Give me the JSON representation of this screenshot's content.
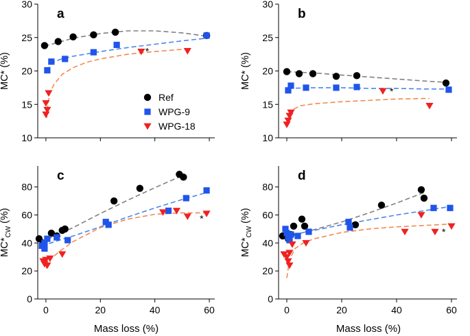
{
  "colors": {
    "Ref": "#000000",
    "WPG-9": "#1f55ea",
    "WPG-18": "#ee2222",
    "fit_Ref": "#808080",
    "fit_WPG-9": "#4a86e8",
    "fit_WPG-18": "#f08a50"
  },
  "xlabels": {
    "bottom_left": "Mass loss (%)",
    "bottom_right": "Mass loss (%)"
  },
  "chart_data": [
    {
      "panel": "a",
      "type": "scatter",
      "ylabel": "MC* (%)",
      "ylabel_sub": "",
      "xlabel": "",
      "xlim": [
        -3,
        62
      ],
      "ylim": [
        10,
        30
      ],
      "xticks": [
        "0",
        "20",
        "40",
        "60"
      ],
      "xtick_values": [
        0,
        20,
        40,
        60
      ],
      "show_xticklabels": false,
      "yticks": [
        "10",
        "15",
        "20",
        "25",
        "30"
      ],
      "ytick_values": [
        10,
        15,
        20,
        25,
        30
      ],
      "legend": [
        "Ref",
        "WPG-9",
        "WPG-18"
      ],
      "annotation": {
        "text": "*",
        "x": 36.5,
        "y": 23.0
      },
      "series": [
        {
          "name": "Ref",
          "marker": "circle",
          "points": [
            [
              -0.5,
              23.8
            ],
            [
              4.5,
              24.4
            ],
            [
              10,
              25.1
            ],
            [
              17.5,
              25.4
            ],
            [
              25.5,
              25.8
            ],
            [
              59,
              25.3
            ]
          ],
          "fit": [
            [
              -0.5,
              23.7
            ],
            [
              10,
              24.9
            ],
            [
              20,
              25.6
            ],
            [
              30,
              26.0
            ],
            [
              40,
              26.0
            ],
            [
              50,
              25.7
            ],
            [
              59,
              25.2
            ]
          ]
        },
        {
          "name": "WPG-9",
          "marker": "square",
          "points": [
            [
              0.5,
              20.1
            ],
            [
              2,
              21.4
            ],
            [
              7,
              21.8
            ],
            [
              17.5,
              22.8
            ],
            [
              26,
              23.9
            ],
            [
              59,
              25.3
            ]
          ],
          "fit": [
            [
              0.5,
              20.0
            ],
            [
              2,
              21.1
            ],
            [
              5,
              21.7
            ],
            [
              10,
              22.2
            ],
            [
              20,
              22.9
            ],
            [
              30,
              23.5
            ],
            [
              40,
              24.0
            ],
            [
              50,
              24.5
            ],
            [
              59,
              24.9
            ]
          ]
        },
        {
          "name": "WPG-18",
          "marker": "triangle-down",
          "points": [
            [
              0,
              13.5
            ],
            [
              0,
              15.2
            ],
            [
              0.5,
              14.2
            ],
            [
              1,
              16.7
            ],
            [
              35,
              22.9
            ],
            [
              52,
              23.0
            ]
          ],
          "fit": [
            [
              0.3,
              13.0
            ],
            [
              0.7,
              15.0
            ],
            [
              1.5,
              16.8
            ],
            [
              3,
              18.0
            ],
            [
              6,
              19.5
            ],
            [
              10,
              20.5
            ],
            [
              15,
              21.3
            ],
            [
              20,
              21.8
            ],
            [
              30,
              22.5
            ],
            [
              40,
              22.9
            ],
            [
              52,
              23.3
            ]
          ]
        }
      ]
    },
    {
      "panel": "b",
      "type": "scatter",
      "ylabel": "MC* (%)",
      "ylabel_sub": "",
      "xlabel": "",
      "xlim": [
        -3,
        62
      ],
      "ylim": [
        10,
        30
      ],
      "xticks": [
        "0",
        "20",
        "40",
        "60"
      ],
      "xtick_values": [
        0,
        20,
        40,
        60
      ],
      "show_xticklabels": false,
      "yticks": [
        "10",
        "15",
        "20",
        "25",
        "30"
      ],
      "ytick_values": [
        10,
        15,
        20,
        25,
        30
      ],
      "legend": [],
      "annotation": {
        "text": "*",
        "x": 37.5,
        "y": 17.0
      },
      "series": [
        {
          "name": "Ref",
          "marker": "circle",
          "points": [
            [
              0,
              19.9
            ],
            [
              4.5,
              19.6
            ],
            [
              9.5,
              19.6
            ],
            [
              18,
              19.2
            ],
            [
              25.5,
              19.3
            ],
            [
              58,
              18.2
            ]
          ],
          "fit": [
            [
              0,
              19.9
            ],
            [
              10,
              19.7
            ],
            [
              20,
              19.4
            ],
            [
              30,
              19.1
            ],
            [
              40,
              18.8
            ],
            [
              50,
              18.5
            ],
            [
              58,
              18.3
            ]
          ]
        },
        {
          "name": "WPG-9",
          "marker": "square",
          "points": [
            [
              0.5,
              17.1
            ],
            [
              1.5,
              17.8
            ],
            [
              7,
              17.5
            ],
            [
              18,
              17.5
            ],
            [
              25.5,
              17.6
            ],
            [
              59,
              17.2
            ]
          ],
          "fit": [
            [
              0.5,
              17.4
            ],
            [
              10,
              17.5
            ],
            [
              20,
              17.5
            ],
            [
              30,
              17.4
            ],
            [
              40,
              17.4
            ],
            [
              50,
              17.3
            ],
            [
              59,
              17.3
            ]
          ]
        },
        {
          "name": "WPG-18",
          "marker": "triangle-down",
          "points": [
            [
              0,
              12.0
            ],
            [
              0.5,
              12.6
            ],
            [
              1,
              13.3
            ],
            [
              1.5,
              13.8
            ],
            [
              35,
              17.0
            ],
            [
              52,
              14.8
            ]
          ],
          "fit": [
            [
              0.3,
              12.3
            ],
            [
              1,
              13.5
            ],
            [
              2,
              14.2
            ],
            [
              5,
              14.8
            ],
            [
              10,
              15.1
            ],
            [
              20,
              15.4
            ],
            [
              30,
              15.6
            ],
            [
              40,
              15.8
            ],
            [
              52,
              15.9
            ]
          ]
        }
      ]
    },
    {
      "panel": "c",
      "type": "scatter",
      "ylabel": "MC*",
      "ylabel_sub": "CW",
      "ylabel_tail": " (%)",
      "xlabel": "Mass loss (%)",
      "xlim": [
        -3,
        62
      ],
      "ylim": [
        0,
        95
      ],
      "xticks": [
        "0",
        "20",
        "40",
        "60"
      ],
      "xtick_values": [
        0,
        20,
        40,
        60
      ],
      "show_xticklabels": true,
      "yticks": [
        "0",
        "20",
        "40",
        "60",
        "80"
      ],
      "ytick_values": [
        0,
        20,
        40,
        60,
        80
      ],
      "legend": [],
      "annotation": {
        "text": "*",
        "x": 56.5,
        "y": 57.5
      },
      "series": [
        {
          "name": "Ref",
          "marker": "circle",
          "points": [
            [
              -2.5,
              43
            ],
            [
              -1,
              40
            ],
            [
              2,
              47
            ],
            [
              4,
              45
            ],
            [
              6,
              49
            ],
            [
              7,
              50
            ],
            [
              25,
              70
            ],
            [
              34.5,
              79
            ],
            [
              49,
              89
            ],
            [
              50.5,
              87
            ]
          ],
          "fit": [
            [
              -2,
              40.5
            ],
            [
              5,
              46.5
            ],
            [
              10,
              51
            ],
            [
              20,
              61
            ],
            [
              30,
              70.5
            ],
            [
              40,
              79.5
            ],
            [
              50.5,
              88.5
            ]
          ]
        },
        {
          "name": "WPG-9",
          "marker": "square",
          "points": [
            [
              -1.5,
              38
            ],
            [
              -0.5,
              36
            ],
            [
              -0.5,
              40
            ],
            [
              0.5,
              43
            ],
            [
              4,
              44
            ],
            [
              8,
              42
            ],
            [
              22,
              55
            ],
            [
              23,
              53
            ],
            [
              45,
              63
            ],
            [
              51.5,
              72
            ],
            [
              59,
              77.5
            ]
          ],
          "fit": [
            [
              -1.5,
              38
            ],
            [
              5,
              42
            ],
            [
              10,
              45
            ],
            [
              20,
              51.5
            ],
            [
              30,
              58.5
            ],
            [
              40,
              65
            ],
            [
              50,
              71
            ],
            [
              59,
              76
            ]
          ]
        },
        {
          "name": "WPG-18",
          "marker": "triangle-down",
          "points": [
            [
              -1,
              27
            ],
            [
              -0.5,
              25
            ],
            [
              0,
              28
            ],
            [
              0.5,
              24
            ],
            [
              1.5,
              29
            ],
            [
              6,
              32
            ],
            [
              43,
              62
            ],
            [
              48,
              63
            ],
            [
              52,
              59
            ],
            [
              59,
              61
            ]
          ],
          "fit": [
            [
              0,
              22
            ],
            [
              2,
              29
            ],
            [
              5,
              34
            ],
            [
              10,
              41
            ],
            [
              20,
              51
            ],
            [
              30,
              57
            ],
            [
              40,
              60.5
            ],
            [
              50,
              61.5
            ],
            [
              59,
              61.5
            ]
          ]
        }
      ]
    },
    {
      "panel": "d",
      "type": "scatter",
      "ylabel": "MC*",
      "ylabel_sub": "CW",
      "ylabel_tail": " (%)",
      "xlabel": "Mass loss (%)",
      "xlim": [
        -3,
        62
      ],
      "ylim": [
        0,
        95
      ],
      "xticks": [
        "0",
        "20",
        "40",
        "60"
      ],
      "xtick_values": [
        0,
        20,
        40,
        60
      ],
      "show_xticklabels": true,
      "yticks": [
        "0",
        "20",
        "40",
        "60",
        "80"
      ],
      "ytick_values": [
        0,
        20,
        40,
        60,
        80
      ],
      "legend": [],
      "annotation": {
        "text": "*",
        "x": 56.5,
        "y": 48
      },
      "series": [
        {
          "name": "Ref",
          "marker": "circle",
          "points": [
            [
              -1.5,
              45
            ],
            [
              0.5,
              43
            ],
            [
              1.5,
              46
            ],
            [
              2.5,
              52
            ],
            [
              5.5,
              57
            ],
            [
              6.5,
              52
            ],
            [
              25,
              53
            ],
            [
              34.5,
              67
            ],
            [
              49,
              78
            ],
            [
              50,
              72
            ]
          ],
          "fit": [
            [
              -1.5,
              44
            ],
            [
              5,
              47
            ],
            [
              10,
              49.5
            ],
            [
              20,
              55
            ],
            [
              30,
              61.5
            ],
            [
              40,
              68.5
            ],
            [
              50,
              76
            ]
          ]
        },
        {
          "name": "WPG-9",
          "marker": "square",
          "points": [
            [
              -0.5,
              50
            ],
            [
              0,
              47
            ],
            [
              0.5,
              44
            ],
            [
              1,
              42
            ],
            [
              1.5,
              46
            ],
            [
              4,
              45
            ],
            [
              8,
              48
            ],
            [
              22.5,
              55
            ],
            [
              23,
              51
            ],
            [
              53.5,
              65
            ],
            [
              59.5,
              65
            ]
          ],
          "fit": [
            [
              -0.5,
              44
            ],
            [
              5,
              47
            ],
            [
              10,
              49
            ],
            [
              20,
              53
            ],
            [
              30,
              56.5
            ],
            [
              40,
              60
            ],
            [
              50,
              63
            ],
            [
              59.5,
              66
            ]
          ]
        },
        {
          "name": "WPG-18",
          "marker": "triangle-down",
          "points": [
            [
              -1,
              32
            ],
            [
              0,
              30
            ],
            [
              0.5,
              27
            ],
            [
              1,
              24
            ],
            [
              1,
              33
            ],
            [
              2,
              39
            ],
            [
              7,
              40
            ],
            [
              43,
              48
            ],
            [
              49,
              60
            ],
            [
              54,
              48
            ],
            [
              60,
              52
            ]
          ],
          "fit": [
            [
              0,
              15
            ],
            [
              1,
              28
            ],
            [
              3,
              36
            ],
            [
              6,
              40
            ],
            [
              10,
              43
            ],
            [
              20,
              47.5
            ],
            [
              30,
              50
            ],
            [
              40,
              51.5
            ],
            [
              50,
              52.5
            ],
            [
              60,
              53.5
            ]
          ]
        }
      ]
    }
  ]
}
